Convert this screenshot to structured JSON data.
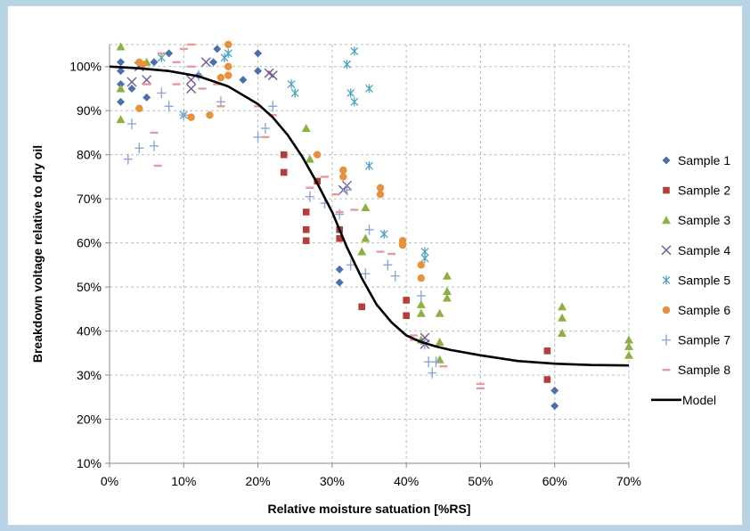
{
  "chart_data": {
    "type": "scatter",
    "title": "",
    "xlabel": "Relative moisture satuation [%RS]",
    "ylabel": "Breakdown voltage  relative to dry oil",
    "xlim": [
      0,
      70
    ],
    "ylim": [
      10,
      105
    ],
    "x_ticks": [
      "0%",
      "10%",
      "20%",
      "30%",
      "40%",
      "50%",
      "60%",
      "70%"
    ],
    "y_ticks": [
      "10%",
      "20%",
      "30%",
      "40%",
      "50%",
      "60%",
      "70%",
      "80%",
      "90%",
      "100%"
    ],
    "grid": "dashed",
    "legend_position": "right",
    "series": [
      {
        "name": "Sample 1",
        "marker": "diamond",
        "color": "#4a70b0",
        "points": [
          [
            1.5,
            101
          ],
          [
            1.5,
            99
          ],
          [
            1.5,
            96
          ],
          [
            1.5,
            92
          ],
          [
            3,
            95
          ],
          [
            5,
            93
          ],
          [
            6,
            101
          ],
          [
            8,
            103
          ],
          [
            12,
            98
          ],
          [
            14,
            101
          ],
          [
            14.5,
            104
          ],
          [
            18,
            97
          ],
          [
            20,
            99
          ],
          [
            20,
            103
          ],
          [
            31,
            54
          ],
          [
            31,
            51
          ],
          [
            60,
            26.5
          ],
          [
            60,
            23
          ]
        ]
      },
      {
        "name": "Sample 2",
        "marker": "square",
        "color": "#b2403a",
        "points": [
          [
            23.5,
            80
          ],
          [
            23.5,
            76
          ],
          [
            26.5,
            67
          ],
          [
            26.5,
            63
          ],
          [
            26.5,
            60.5
          ],
          [
            28,
            74
          ],
          [
            31,
            63
          ],
          [
            31,
            61
          ],
          [
            34,
            45.5
          ],
          [
            40,
            47
          ],
          [
            40,
            43.5
          ],
          [
            59,
            35.5
          ],
          [
            59,
            29
          ]
        ]
      },
      {
        "name": "Sample 3",
        "marker": "triangle",
        "color": "#8cb143",
        "points": [
          [
            1.5,
            104.5
          ],
          [
            1.5,
            95
          ],
          [
            1.5,
            88
          ],
          [
            5,
            101
          ],
          [
            26.5,
            86
          ],
          [
            27,
            79
          ],
          [
            34.5,
            68
          ],
          [
            34.5,
            61
          ],
          [
            34,
            58
          ],
          [
            42,
            46
          ],
          [
            42,
            44
          ],
          [
            42,
            38
          ],
          [
            44.5,
            44
          ],
          [
            44.5,
            37.5
          ],
          [
            44.5,
            33.5
          ],
          [
            45.5,
            52.5
          ],
          [
            45.5,
            49
          ],
          [
            45.5,
            47.5
          ],
          [
            61,
            45.5
          ],
          [
            61,
            43
          ],
          [
            61,
            39.5
          ],
          [
            70,
            38
          ],
          [
            70,
            36.5
          ],
          [
            70,
            34.5
          ]
        ]
      },
      {
        "name": "Sample 4",
        "marker": "x",
        "color": "#6e5a96",
        "points": [
          [
            3,
            96.5
          ],
          [
            4,
            100
          ],
          [
            5,
            97
          ],
          [
            11,
            95
          ],
          [
            11,
            97
          ],
          [
            13,
            101
          ],
          [
            21.5,
            98.5
          ],
          [
            22,
            98
          ],
          [
            31.5,
            72
          ],
          [
            32,
            73
          ],
          [
            42.5,
            38.5
          ],
          [
            42.5,
            37
          ]
        ]
      },
      {
        "name": "Sample 5",
        "marker": "star",
        "color": "#4aa3bf",
        "points": [
          [
            7,
            102
          ],
          [
            10,
            89
          ],
          [
            15.5,
            102
          ],
          [
            16,
            103
          ],
          [
            24.5,
            96
          ],
          [
            25,
            94
          ],
          [
            32,
            100.5
          ],
          [
            32.5,
            94
          ],
          [
            33,
            92
          ],
          [
            33,
            103.5
          ],
          [
            35,
            95
          ],
          [
            35,
            77.5
          ],
          [
            37,
            62
          ],
          [
            42.5,
            58
          ],
          [
            42.5,
            56.5
          ]
        ]
      },
      {
        "name": "Sample 6",
        "marker": "circle",
        "color": "#e7913c",
        "points": [
          [
            4,
            101
          ],
          [
            4.5,
            100.5
          ],
          [
            4,
            90.5
          ],
          [
            11,
            88.5
          ],
          [
            13.5,
            89
          ],
          [
            15,
            97.5
          ],
          [
            16,
            105
          ],
          [
            16,
            100
          ],
          [
            16,
            98
          ],
          [
            28,
            80
          ],
          [
            31.5,
            76.5
          ],
          [
            31.5,
            75
          ],
          [
            36.5,
            72.5
          ],
          [
            36.5,
            71
          ],
          [
            39.5,
            60.5
          ],
          [
            39.5,
            59.5
          ],
          [
            42,
            52
          ],
          [
            42,
            55
          ]
        ]
      },
      {
        "name": "Sample 7",
        "marker": "plus",
        "color": "#8ea6d6",
        "points": [
          [
            2.5,
            79
          ],
          [
            3,
            87
          ],
          [
            4,
            81.5
          ],
          [
            6,
            82
          ],
          [
            7,
            94
          ],
          [
            8,
            91
          ],
          [
            10,
            89
          ],
          [
            12,
            98
          ],
          [
            15,
            92
          ],
          [
            20,
            84
          ],
          [
            21,
            86
          ],
          [
            22,
            91
          ],
          [
            27,
            70.5
          ],
          [
            29,
            69
          ],
          [
            31,
            66.5
          ],
          [
            32,
            72
          ],
          [
            32.5,
            55
          ],
          [
            34.5,
            53
          ],
          [
            35,
            63
          ],
          [
            37.5,
            55
          ],
          [
            38.5,
            52.5
          ],
          [
            42,
            48
          ],
          [
            42.5,
            37
          ],
          [
            43,
            33
          ],
          [
            43.5,
            30.5
          ],
          [
            44,
            33
          ]
        ]
      },
      {
        "name": "Sample 8",
        "marker": "dash",
        "color": "#e79a9a",
        "points": [
          [
            5,
            96
          ],
          [
            6,
            85
          ],
          [
            6.5,
            77.5
          ],
          [
            7,
            103
          ],
          [
            9,
            101
          ],
          [
            9,
            96
          ],
          [
            10,
            104
          ],
          [
            11,
            105
          ],
          [
            11,
            100
          ],
          [
            12.5,
            95
          ],
          [
            14.5,
            96
          ],
          [
            15,
            91
          ],
          [
            20,
            91
          ],
          [
            21,
            84
          ],
          [
            22,
            89
          ],
          [
            27,
            72.5
          ],
          [
            29,
            75
          ],
          [
            30.5,
            71
          ],
          [
            31,
            67
          ],
          [
            33,
            67.5
          ],
          [
            36.5,
            58
          ],
          [
            38,
            57.5
          ],
          [
            41,
            39
          ],
          [
            41,
            38
          ],
          [
            45,
            32
          ],
          [
            50,
            28
          ],
          [
            50,
            27
          ]
        ]
      },
      {
        "name": "Model",
        "type": "line",
        "color": "#000000",
        "points": [
          [
            0,
            100
          ],
          [
            4,
            99.6
          ],
          [
            8,
            99
          ],
          [
            12,
            97.8
          ],
          [
            16,
            95.5
          ],
          [
            20,
            91.5
          ],
          [
            22,
            88.5
          ],
          [
            24,
            84.5
          ],
          [
            26,
            79.5
          ],
          [
            28,
            73.5
          ],
          [
            30,
            67
          ],
          [
            32,
            59
          ],
          [
            34,
            52
          ],
          [
            36,
            46
          ],
          [
            38,
            42
          ],
          [
            40,
            39
          ],
          [
            42,
            37.5
          ],
          [
            44,
            36.5
          ],
          [
            46,
            35.7
          ],
          [
            50,
            34.5
          ],
          [
            55,
            33.2
          ],
          [
            60,
            32.6
          ],
          [
            65,
            32.3
          ],
          [
            70,
            32.2
          ]
        ]
      }
    ]
  }
}
